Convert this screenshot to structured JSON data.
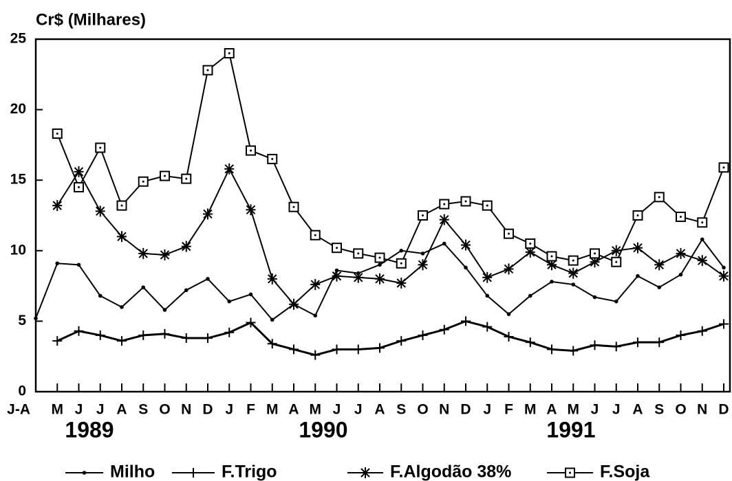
{
  "chart_data": {
    "type": "line",
    "y_axis_label": "Cr$ (Milhares)",
    "categories": [
      "J-A",
      "M",
      "J",
      "J",
      "A",
      "S",
      "O",
      "N",
      "D",
      "J",
      "F",
      "M",
      "A",
      "M",
      "J",
      "J",
      "A",
      "S",
      "O",
      "N",
      "D",
      "J",
      "F",
      "M",
      "A",
      "M",
      "J",
      "J",
      "A",
      "S",
      "O",
      "N",
      "D"
    ],
    "annotations": [
      "1989",
      "1990",
      "1991"
    ],
    "series": [
      {
        "name": "Milho",
        "color": "#000000",
        "marker": "dot",
        "values": [
          5.2,
          9.1,
          9.0,
          6.8,
          6.0,
          7.4,
          5.8,
          7.2,
          8.0,
          6.4,
          6.9,
          5.1,
          6.2,
          5.4,
          8.6,
          8.4,
          9.0,
          10.0,
          9.8,
          10.5,
          8.8,
          6.8,
          5.5,
          6.8,
          7.8,
          7.6,
          6.7,
          6.4,
          8.2,
          7.4,
          8.3,
          10.8,
          8.8
        ]
      },
      {
        "name": "F.Trigo",
        "color": "#000000",
        "marker": "plus",
        "values": [
          null,
          3.6,
          4.3,
          4.0,
          3.6,
          4.0,
          4.1,
          3.8,
          3.8,
          4.2,
          4.9,
          3.4,
          3.0,
          2.6,
          3.0,
          3.0,
          3.1,
          3.6,
          4.0,
          4.4,
          5.0,
          4.6,
          3.9,
          3.5,
          3.0,
          2.9,
          3.3,
          3.2,
          3.5,
          3.5,
          4.0,
          4.3,
          4.8
        ]
      },
      {
        "name": "F.Algodão 38%",
        "color": "#000000",
        "marker": "asterisk",
        "values": [
          null,
          13.2,
          15.6,
          12.8,
          11.0,
          9.8,
          9.7,
          10.3,
          12.6,
          15.8,
          12.9,
          8.0,
          6.2,
          7.6,
          8.2,
          8.1,
          8.0,
          7.7,
          9.0,
          12.2,
          10.4,
          8.1,
          8.7,
          9.9,
          9.0,
          8.4,
          9.2,
          10.0,
          10.2,
          9.0,
          9.8,
          9.3,
          8.2
        ]
      },
      {
        "name": "F.Soja",
        "color": "#000000",
        "marker": "square",
        "values": [
          null,
          18.3,
          14.5,
          17.3,
          13.2,
          14.9,
          15.3,
          15.1,
          22.8,
          24.0,
          17.1,
          16.5,
          13.1,
          11.1,
          10.2,
          9.8,
          9.5,
          9.1,
          12.5,
          13.3,
          13.5,
          13.2,
          11.2,
          10.5,
          9.6,
          9.3,
          9.8,
          9.2,
          12.5,
          13.8,
          12.4,
          12.0,
          15.9
        ]
      }
    ],
    "ylim": [
      0,
      25
    ],
    "yticks": [
      0,
      5,
      10,
      15,
      20,
      25
    ],
    "grid": false
  }
}
